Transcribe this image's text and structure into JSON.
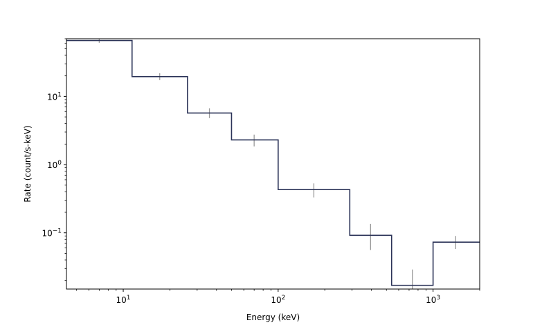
{
  "chart_data": {
    "type": "line",
    "title": "",
    "xlabel": "Energy (keV)",
    "ylabel": "Rate (count/s-keV)",
    "xscale": "log",
    "yscale": "log",
    "xlim": [
      4.3,
      2000
    ],
    "ylim": [
      0.015,
      70
    ],
    "grid": false,
    "legend": "none",
    "xticks": [
      {
        "value": 10,
        "base": "10",
        "exp": "1"
      },
      {
        "value": 100,
        "base": "10",
        "exp": "2"
      },
      {
        "value": 1000,
        "base": "10",
        "exp": "3"
      }
    ],
    "yticks": [
      {
        "value": 0.1,
        "base": "10",
        "exp": "−1"
      },
      {
        "value": 1,
        "base": "10",
        "exp": "0"
      },
      {
        "value": 10,
        "base": "10",
        "exp": "1"
      }
    ],
    "series": [
      {
        "color": "#2b3358",
        "style": "step",
        "bin_edges": [
          4.3,
          11.4,
          26,
          50,
          100,
          290,
          540,
          1000,
          2000
        ],
        "values": [
          66,
          19.5,
          5.7,
          2.3,
          0.43,
          0.092,
          0.017,
          0.073
        ]
      }
    ],
    "error_bars": {
      "color": "#999999",
      "points": [
        {
          "x": 7,
          "y": 66,
          "low": 61,
          "high": 72
        },
        {
          "x": 17.2,
          "y": 19.5,
          "low": 17.3,
          "high": 21.8
        },
        {
          "x": 36,
          "y": 5.7,
          "low": 4.8,
          "high": 6.7
        },
        {
          "x": 70,
          "y": 2.3,
          "low": 1.85,
          "high": 2.75
        },
        {
          "x": 170,
          "y": 0.43,
          "low": 0.33,
          "high": 0.53
        },
        {
          "x": 395,
          "y": 0.092,
          "low": 0.056,
          "high": 0.135
        },
        {
          "x": 735,
          "y": 0.017,
          "low": 0.012,
          "high": 0.029
        },
        {
          "x": 1400,
          "y": 0.073,
          "low": 0.058,
          "high": 0.09
        }
      ]
    }
  }
}
